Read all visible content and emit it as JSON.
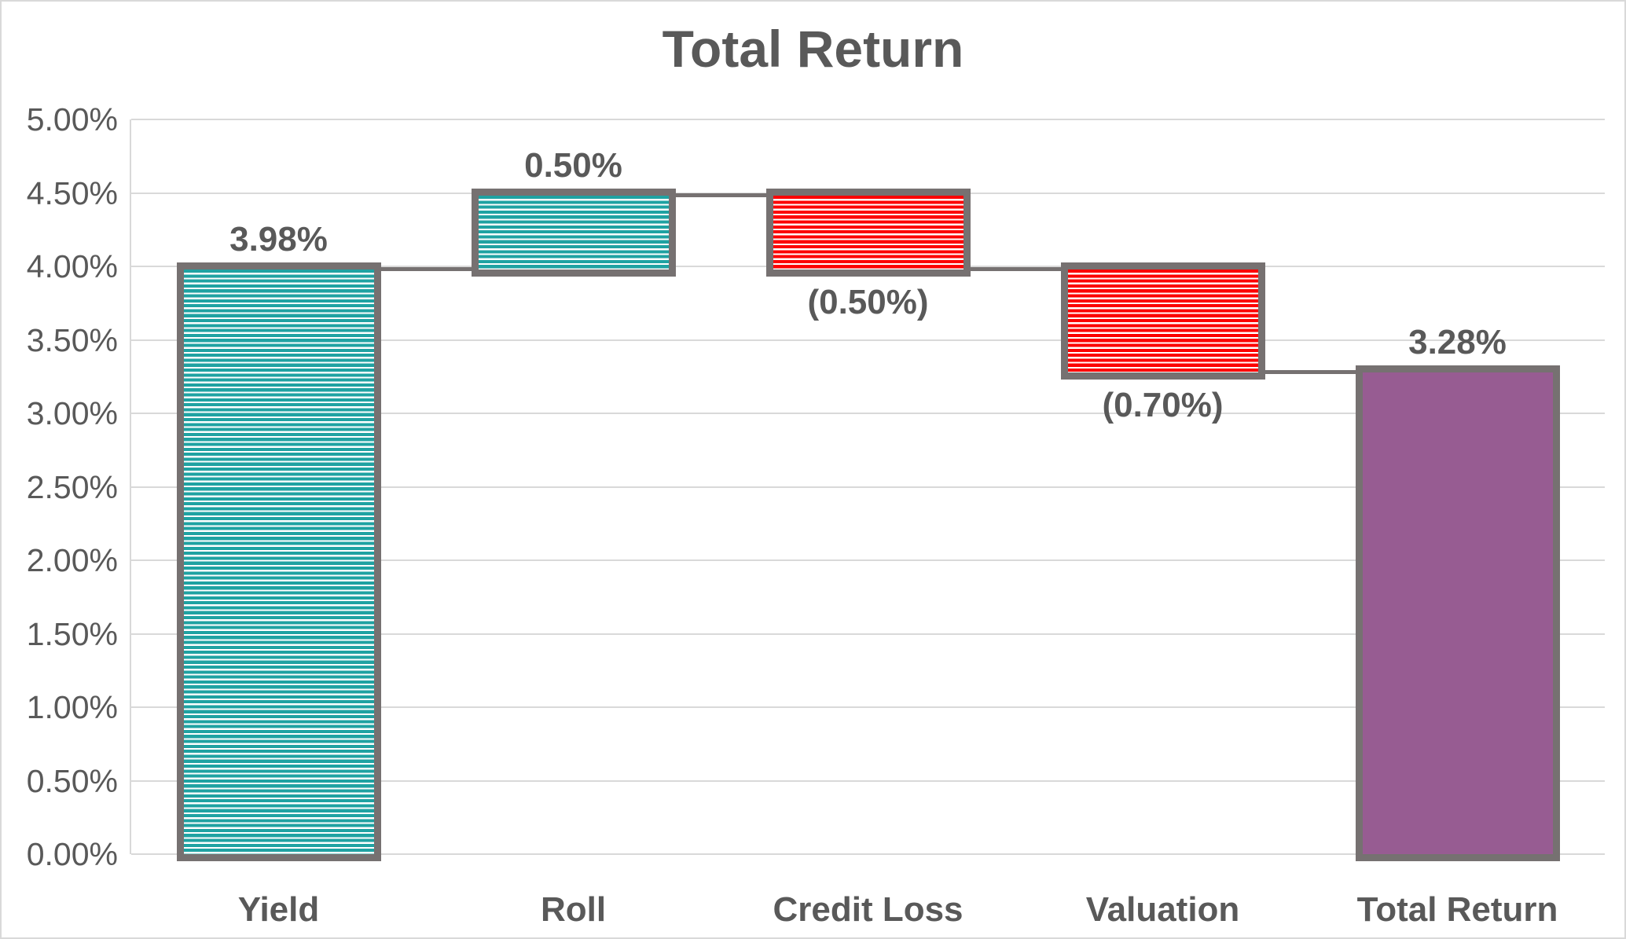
{
  "chart_data": {
    "type": "bar",
    "subtype": "waterfall",
    "title": "Total Return",
    "categories": [
      "Yield",
      "Roll",
      "Credit Loss",
      "Valuation",
      "Total Return"
    ],
    "series": [
      {
        "name": "Total Return",
        "values": [
          3.98,
          0.5,
          -0.5,
          -0.7,
          3.28
        ]
      }
    ],
    "bars": [
      {
        "category": "Yield",
        "label": "3.98%",
        "value": 3.98,
        "start": 0,
        "end": 3.98,
        "kind": "increase",
        "label_position": "above"
      },
      {
        "category": "Roll",
        "label": "0.50%",
        "value": 0.5,
        "start": 3.98,
        "end": 4.48,
        "kind": "increase",
        "label_position": "above"
      },
      {
        "category": "Credit Loss",
        "label": "(0.50%)",
        "value": -0.5,
        "start": 4.48,
        "end": 3.98,
        "kind": "decrease",
        "label_position": "below"
      },
      {
        "category": "Valuation",
        "label": "(0.70%)",
        "value": -0.7,
        "start": 3.98,
        "end": 3.28,
        "kind": "decrease",
        "label_position": "below"
      },
      {
        "category": "Total Return",
        "label": "3.28%",
        "value": 3.28,
        "start": 0,
        "end": 3.28,
        "kind": "total",
        "label_position": "above"
      }
    ],
    "y_axis": {
      "min": 0,
      "max": 5,
      "step": 0.5,
      "format": "percent",
      "tick_labels": [
        "0.00%",
        "0.50%",
        "1.00%",
        "1.50%",
        "2.00%",
        "2.50%",
        "3.00%",
        "3.50%",
        "4.00%",
        "4.50%",
        "5.00%"
      ]
    },
    "grid": true,
    "legend": false,
    "colors": {
      "increase": "#1fa2a2",
      "decrease": "#fc0000",
      "total": "#975c92",
      "bar_border": "#767171",
      "connector": "#767171",
      "gridline": "#d9d9d9",
      "text": "#595959",
      "background": "#ffffff"
    },
    "patterns": {
      "increase": "horizontal-stripes",
      "decrease": "horizontal-stripes",
      "total": "solid"
    }
  }
}
